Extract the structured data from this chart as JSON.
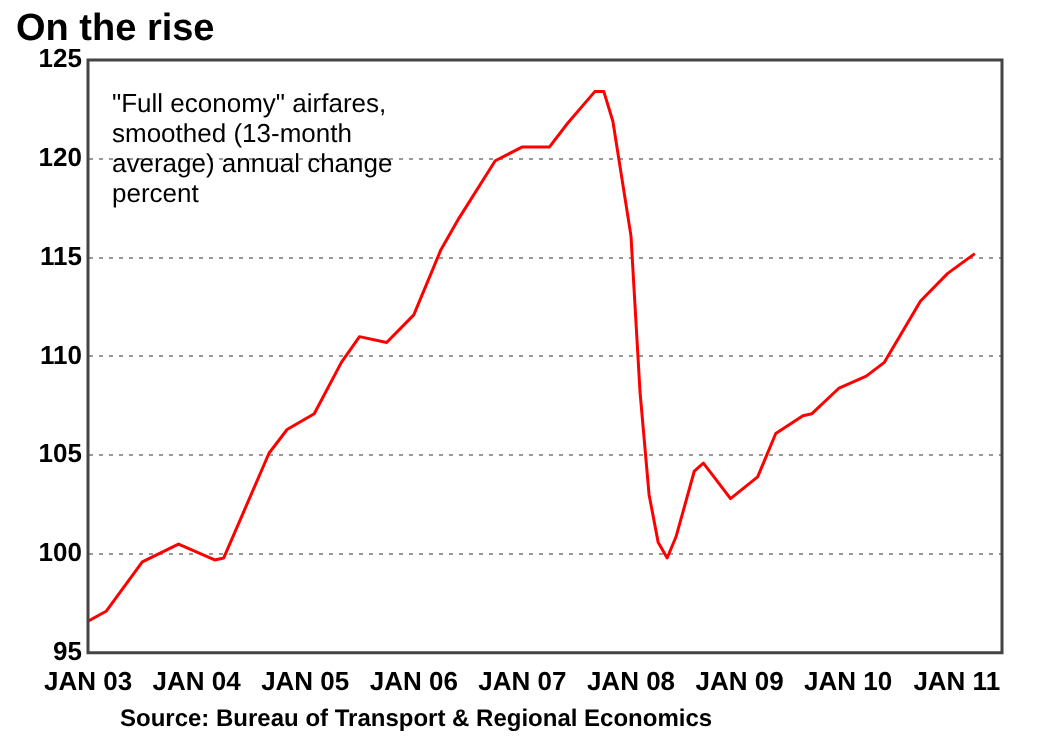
{
  "chart_data": {
    "type": "line",
    "title": "On the rise",
    "annotations": [
      "\"Full economy\" airfares, smoothed (13-month average) annual change percent",
      "Source: Bureau of Transport & Regional Economics"
    ],
    "x": [
      "2003-01",
      "2003-03",
      "2003-07",
      "2003-11",
      "2004-03",
      "2004-04",
      "2004-09",
      "2004-11",
      "2005-02",
      "2005-05",
      "2005-07",
      "2005-10",
      "2006-01",
      "2006-04",
      "2006-06",
      "2006-10",
      "2007-01",
      "2007-04",
      "2007-06",
      "2007-09",
      "2007-10",
      "2007-11",
      "2008-01",
      "2008-02",
      "2008-03",
      "2008-04",
      "2008-05",
      "2008-06",
      "2008-08",
      "2008-09",
      "2008-10",
      "2008-12",
      "2009-03",
      "2009-05",
      "2009-08",
      "2009-09",
      "2009-12",
      "2010-03",
      "2010-05",
      "2010-09",
      "2010-12",
      "2011-03"
    ],
    "series": [
      {
        "color": "#ff0000",
        "values": [
          96.6,
          97.1,
          99.6,
          100.5,
          99.7,
          99.8,
          105.1,
          106.3,
          107.1,
          109.7,
          111.0,
          110.7,
          112.1,
          115.4,
          117.0,
          119.9,
          120.6,
          120.6,
          121.8,
          123.4,
          123.4,
          121.9,
          116.1,
          108.2,
          103.0,
          100.6,
          99.8,
          100.9,
          104.2,
          104.6,
          104.0,
          102.8,
          103.9,
          106.1,
          107.0,
          107.1,
          108.4,
          109.0,
          109.7,
          112.8,
          114.2,
          115.2
        ]
      }
    ],
    "xlim": [
      "2003-01",
      "2011-06"
    ],
    "xticks": [
      {
        "value": "2003-01",
        "label": "JAN 03"
      },
      {
        "value": "2004-01",
        "label": "JAN 04"
      },
      {
        "value": "2005-01",
        "label": "JAN 05"
      },
      {
        "value": "2006-01",
        "label": "JAN 06"
      },
      {
        "value": "2007-01",
        "label": "JAN 07"
      },
      {
        "value": "2008-01",
        "label": "JAN 08"
      },
      {
        "value": "2009-01",
        "label": "JAN 09"
      },
      {
        "value": "2010-01",
        "label": "JAN 10"
      },
      {
        "value": "2011-01",
        "label": "JAN 11"
      }
    ],
    "ylim": [
      95,
      125
    ],
    "yticks": [
      95,
      100,
      105,
      110,
      115,
      120,
      125
    ],
    "grid": "y",
    "legend": false
  }
}
